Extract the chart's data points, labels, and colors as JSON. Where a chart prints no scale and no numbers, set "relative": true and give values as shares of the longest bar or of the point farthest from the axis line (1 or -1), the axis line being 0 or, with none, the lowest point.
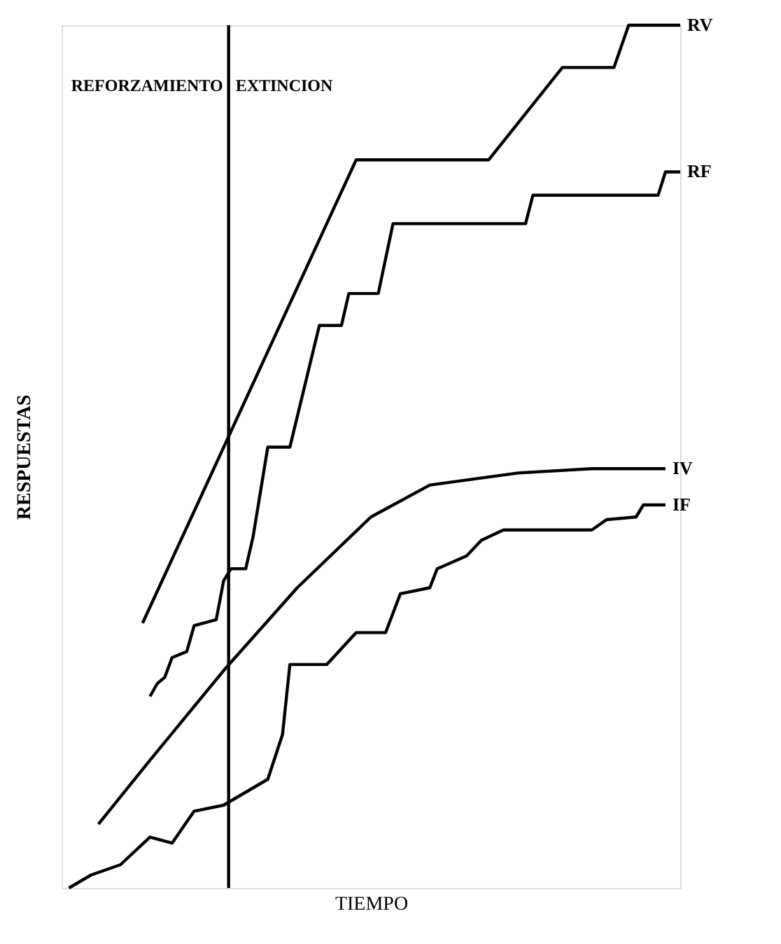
{
  "chart_data": {
    "type": "line",
    "relative": true,
    "xlabel": "TIEMPO",
    "ylabel": "RESPUESTAS",
    "legend": false,
    "grid": false,
    "marker": "none",
    "line_style": "solid",
    "categories": [
      null,
      null,
      null,
      null,
      null,
      null,
      null,
      null,
      null,
      null,
      null,
      null,
      null,
      null,
      null,
      null,
      null,
      null,
      null,
      null,
      null,
      null,
      null,
      null,
      null,
      null,
      null,
      null,
      null,
      null,
      null,
      null,
      null,
      null,
      null,
      null,
      null,
      null,
      null,
      null,
      null,
      null,
      null,
      null,
      null,
      null,
      null,
      null,
      null,
      null,
      null,
      null,
      null,
      null,
      null,
      null,
      null,
      null,
      null,
      null,
      null,
      null,
      null,
      null,
      null,
      null,
      null,
      null,
      null,
      null,
      null,
      null,
      null,
      null,
      null,
      null,
      null,
      null,
      null,
      null,
      null,
      null,
      null,
      null,
      null
    ],
    "annotations": [
      "REFORZAMIENTO",
      "EXTINCION"
    ],
    "series": [
      {
        "name": "RV",
        "color": "#000000",
        "values": [
          null,
          null,
          null,
          null,
          null,
          null,
          null,
          null,
          null,
          null,
          null,
          0.307,
          null,
          null,
          null,
          null,
          null,
          null,
          null,
          null,
          null,
          null,
          null,
          null,
          null,
          null,
          null,
          null,
          null,
          null,
          null,
          null,
          null,
          null,
          null,
          null,
          null,
          null,
          null,
          null,
          0.844,
          null,
          null,
          null,
          null,
          null,
          null,
          null,
          null,
          null,
          null,
          null,
          null,
          null,
          null,
          null,
          null,
          null,
          0.844,
          null,
          null,
          null,
          null,
          null,
          null,
          null,
          null,
          null,
          0.951,
          null,
          null,
          null,
          null,
          null,
          null,
          0.951,
          null,
          1.0,
          null,
          null,
          null,
          null,
          null,
          null,
          1.0
        ]
      },
      {
        "name": "RF",
        "color": "#000000",
        "values": [
          null,
          null,
          null,
          null,
          null,
          null,
          null,
          null,
          null,
          null,
          null,
          null,
          0.222,
          0.237,
          0.244,
          0.267,
          null,
          0.274,
          0.304,
          null,
          null,
          0.311,
          0.356,
          0.37,
          null,
          0.37,
          0.407,
          null,
          0.511,
          null,
          null,
          0.511,
          null,
          null,
          null,
          0.652,
          null,
          null,
          0.652,
          0.689,
          null,
          null,
          null,
          0.689,
          null,
          0.77,
          null,
          null,
          null,
          null,
          null,
          null,
          null,
          null,
          null,
          null,
          null,
          null,
          null,
          null,
          null,
          null,
          null,
          0.77,
          0.803,
          null,
          null,
          null,
          null,
          null,
          null,
          null,
          null,
          null,
          null,
          null,
          null,
          null,
          null,
          null,
          null,
          0.803,
          0.83,
          null,
          0.83
        ]
      },
      {
        "name": "IV",
        "color": "#000000",
        "values": [
          null,
          null,
          null,
          null,
          null,
          0.074,
          null,
          null,
          null,
          null,
          null,
          null,
          0.148,
          null,
          null,
          null,
          null,
          null,
          null,
          null,
          null,
          null,
          0.252,
          null,
          null,
          null,
          null,
          null,
          null,
          null,
          null,
          null,
          0.348,
          null,
          null,
          null,
          null,
          null,
          null,
          null,
          null,
          null,
          0.43,
          null,
          null,
          null,
          null,
          null,
          null,
          null,
          0.467,
          null,
          null,
          null,
          null,
          null,
          null,
          null,
          null,
          null,
          null,
          null,
          0.481,
          null,
          null,
          null,
          null,
          null,
          null,
          null,
          null,
          null,
          0.486,
          null,
          null,
          null,
          null,
          null,
          null,
          null,
          null,
          null,
          0.486,
          null,
          null
        ]
      },
      {
        "name": "IF",
        "color": "#000000",
        "values": [
          null,
          0,
          null,
          null,
          0.015,
          null,
          null,
          null,
          0.027,
          null,
          null,
          null,
          0.059,
          null,
          null,
          0.052,
          null,
          null,
          0.089,
          null,
          null,
          null,
          0.096,
          null,
          null,
          null,
          null,
          null,
          0.126,
          null,
          0.178,
          0.259,
          null,
          null,
          null,
          null,
          0.259,
          null,
          null,
          null,
          0.296,
          null,
          null,
          null,
          0.296,
          null,
          0.341,
          null,
          null,
          null,
          0.348,
          0.37,
          null,
          null,
          null,
          0.385,
          null,
          0.403,
          null,
          null,
          0.415,
          null,
          null,
          null,
          null,
          null,
          null,
          null,
          null,
          null,
          null,
          null,
          0.415,
          null,
          0.427,
          null,
          null,
          null,
          0.43,
          0.444,
          null,
          null,
          0.444,
          null,
          null
        ]
      }
    ]
  }
}
